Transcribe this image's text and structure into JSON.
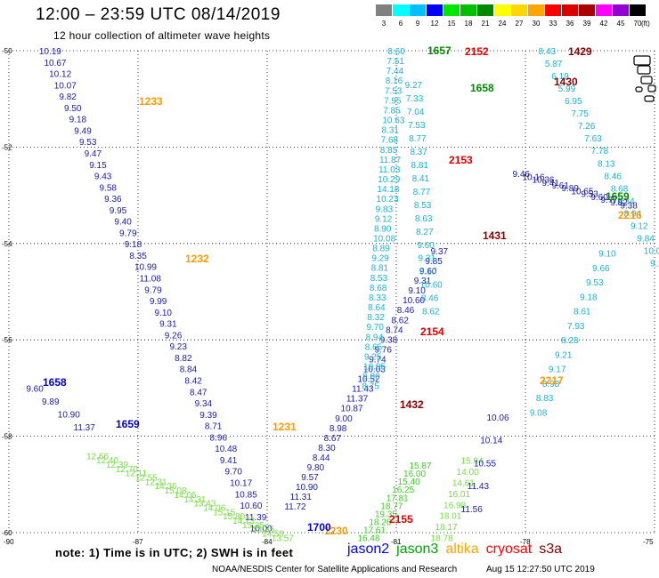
{
  "title": "12:00 – 23:59 UTC 08/14/2019",
  "subtitle": "12 hour collection of altimeter wave heights",
  "scale": {
    "unit": "(ft)",
    "swatches": [
      {
        "label": "3",
        "color": "#808080"
      },
      {
        "label": "6",
        "color": "#00ffff"
      },
      {
        "label": "9",
        "color": "#00bfff"
      },
      {
        "label": "12",
        "color": "#0000ff"
      },
      {
        "label": "15",
        "color": "#00e600"
      },
      {
        "label": "18",
        "color": "#00c000"
      },
      {
        "label": "21",
        "color": "#008800"
      },
      {
        "label": "24",
        "color": "#ffff00"
      },
      {
        "label": "27",
        "color": "#ffd700"
      },
      {
        "label": "30",
        "color": "#ffa500"
      },
      {
        "label": "33",
        "color": "#ff0000"
      },
      {
        "label": "36",
        "color": "#dd0000"
      },
      {
        "label": "39",
        "color": "#aa0000"
      },
      {
        "label": "42",
        "color": "#ff00ff"
      },
      {
        "label": "45",
        "color": "#9400d3"
      },
      {
        "label": "70",
        "color": "#000000"
      }
    ]
  },
  "axes": {
    "lat_labels": [
      {
        "lat": -50,
        "label": "-50"
      },
      {
        "lat": -52,
        "label": "-52"
      },
      {
        "lat": -54,
        "label": "-54"
      },
      {
        "lat": -56,
        "label": "-56"
      },
      {
        "lat": -58,
        "label": "-58"
      },
      {
        "lat": -60,
        "label": "-60"
      }
    ],
    "lon_labels": [
      {
        "lon": -90,
        "label": "-90"
      },
      {
        "lon": -87,
        "label": "-87"
      },
      {
        "lon": -84,
        "label": "-84"
      },
      {
        "lon": -81,
        "label": "-81"
      },
      {
        "lon": -78,
        "label": "-78"
      },
      {
        "lon": -75,
        "label": "-75"
      }
    ]
  },
  "colors": {
    "v_blue": "#1a1aaa",
    "v_cyan": "#19b3d1",
    "v_green": "#3dcc29",
    "v_lgreen": "#77dd44",
    "v_dgreen": "#0a8a0a",
    "t_blue": "#0000cc",
    "t_orange": "#ff9900",
    "t_red": "#dd0000",
    "t_maroon": "#880000",
    "t_green": "#008800",
    "jason2": "#0000ff",
    "jason3": "#00a000",
    "altika": "#ffa500",
    "cryosat": "#ff0000",
    "s3a": "#880000"
  },
  "tracks": [
    {
      "id": "jason2-west",
      "color": "v_blue",
      "values": [
        "10.19",
        "10.67",
        "10.12",
        "10.07",
        "9.82",
        "9.50",
        "9.18",
        "9.49",
        "9.53",
        "9.47",
        "9.15",
        "9.43",
        "9.58",
        "9.36",
        "9.95",
        "9.40",
        "9.79",
        "9.18",
        "8.35",
        "10.99",
        "11.08",
        "9.79",
        "9.99",
        "9.10",
        "9.31",
        "9.26",
        "9.23",
        "8.82",
        "8.84",
        "8.42",
        "8.47",
        "9.34",
        "9.39",
        "8.71",
        "8.96",
        "10.48",
        "9.41",
        "9.70",
        "10.17",
        "10.85",
        "10.60",
        "11.39",
        "10.00"
      ]
    },
    {
      "id": "jason2-east",
      "color": "v_blue",
      "values": [
        "11.72",
        "11.31",
        "10.90",
        "9.57",
        "9.80",
        "8.44",
        "8.30",
        "8.67",
        "8.98",
        "9.00",
        "10.87",
        "11.37",
        "11.43",
        "10.52",
        "10.03",
        "9.74",
        "9.76",
        "9.38",
        "8.74",
        "8.62",
        "8.46",
        "10.60",
        "9.10",
        "9.31",
        "9.60",
        "9.85",
        "9.37"
      ]
    },
    {
      "id": "cryosat-east",
      "color": "v_cyan",
      "values": [
        "9.10",
        "9.66",
        "9.53",
        "9.18",
        "8.61",
        "7.93",
        "8.28",
        "9.21",
        "9.17",
        "8.98",
        "8.83",
        "9.08"
      ]
    },
    {
      "id": "cryosat-north",
      "color": "v_cyan",
      "values": [
        "8.60",
        "7.51",
        "7.44",
        "8.16",
        "7.53",
        "7.95",
        "7.85",
        "10.63",
        "8.31",
        "7.68",
        "8.85",
        "11.87",
        "11.03",
        "10.29",
        "14.18",
        "10.23",
        "9.83",
        "9.12",
        "8.90",
        "10.08",
        "8.89",
        "9.29",
        "8.81",
        "8.53",
        "8.68",
        "8.33",
        "8.64",
        "8.32",
        "9.70",
        "8.94",
        "8.65",
        "9.25",
        "10.95",
        "9.00",
        "8.75"
      ]
    },
    {
      "id": "s3a-descend",
      "color": "v_cyan",
      "values": [
        "9.27",
        "7.33",
        "7.04",
        "7.53",
        "8.77",
        "8.37",
        "8.81",
        "8.41",
        "8.77",
        "8.53",
        "8.63",
        "8.27",
        "9.60",
        "9.31",
        "9.10",
        "10.60",
        "8.46",
        "8.62"
      ]
    },
    {
      "id": "altika-right",
      "color": "v_cyan",
      "values": [
        "8.43",
        "5.87",
        "6.19",
        "5.99",
        "6.95",
        "7.75",
        "7.26",
        "7.63",
        "7.78",
        "8.13",
        "8.46",
        "8.68",
        "8.34",
        "8.94",
        "9.12",
        "9.84",
        "10.04",
        "9.10"
      ]
    },
    {
      "id": "s3a-right",
      "color": "v_blue",
      "values": [
        "9.46",
        "10.16",
        "10.36",
        "9.41",
        "9.61",
        "9.89",
        "10.65",
        "9.53",
        "9.60",
        "9.77",
        "9.82",
        "9.38"
      ]
    },
    {
      "id": "jason3-upper",
      "color": "v_green",
      "values": [
        "15.87",
        "16.00",
        "15.40",
        "16.25",
        "17.81",
        "18.77",
        "19.35",
        "18.26",
        "17.61",
        "16.48"
      ]
    },
    {
      "id": "jason3-lower",
      "color": "v_lgreen",
      "values": [
        "15.94",
        "14.00",
        "14.61",
        "16.01",
        "16.98",
        "18.01",
        "18.17",
        "18.78"
      ]
    },
    {
      "id": "cryosat-low",
      "color": "v_blue",
      "values": [
        "10.06",
        "10.14",
        "10.55",
        "11.43",
        "11.56"
      ]
    },
    {
      "id": "jason3-southwest",
      "color": "v_blue",
      "values": [
        "9.60",
        "9.89",
        "10.90",
        "11.37"
      ]
    },
    {
      "id": "jason3-southwest-green",
      "color": "v_lgreen",
      "values": [
        "12.66",
        "12.40",
        "12.39",
        "12.70",
        "12.11",
        "12.55",
        "12.31",
        "14.36",
        "15.08",
        "14.06",
        "14.31",
        "13.43",
        "14.06",
        "15.15",
        "15.80",
        "14.73",
        "15.35",
        "13.35",
        "14.53",
        "13.57"
      ]
    }
  ],
  "time_labels": [
    {
      "text": "1233",
      "color": "t_orange"
    },
    {
      "text": "1232",
      "color": "t_orange"
    },
    {
      "text": "1231",
      "color": "t_orange"
    },
    {
      "text": "1230",
      "color": "t_orange"
    },
    {
      "text": "1658",
      "color": "t_blue"
    },
    {
      "text": "1659",
      "color": "t_blue"
    },
    {
      "text": "1700",
      "color": "t_blue"
    },
    {
      "text": "1657",
      "color": "t_green"
    },
    {
      "text": "1658",
      "color": "t_green"
    },
    {
      "text": "1659",
      "color": "t_green"
    },
    {
      "text": "2152",
      "color": "t_red"
    },
    {
      "text": "2153",
      "color": "t_red"
    },
    {
      "text": "2154",
      "color": "t_red"
    },
    {
      "text": "2155",
      "color": "t_red"
    },
    {
      "text": "1429",
      "color": "t_maroon"
    },
    {
      "text": "1430",
      "color": "t_maroon"
    },
    {
      "text": "1431",
      "color": "t_maroon"
    },
    {
      "text": "1432",
      "color": "t_maroon"
    },
    {
      "text": "2216",
      "color": "t_orange"
    },
    {
      "text": "2217",
      "color": "t_orange"
    }
  ],
  "note": "note:  1) Time is in UTC; 2) SWH is in feet",
  "satellites": [
    {
      "name": "jason2",
      "color": "jason2"
    },
    {
      "name": "jason3",
      "color": "jason3"
    },
    {
      "name": "altika",
      "color": "altika"
    },
    {
      "name": "cryosat",
      "color": "cryosat"
    },
    {
      "name": "s3a",
      "color": "s3a"
    }
  ],
  "credit": "NOAA/NESDIS Center for Satellite Applications and Research",
  "timestamp": "Aug 15 12:27:50 UTC 2019"
}
